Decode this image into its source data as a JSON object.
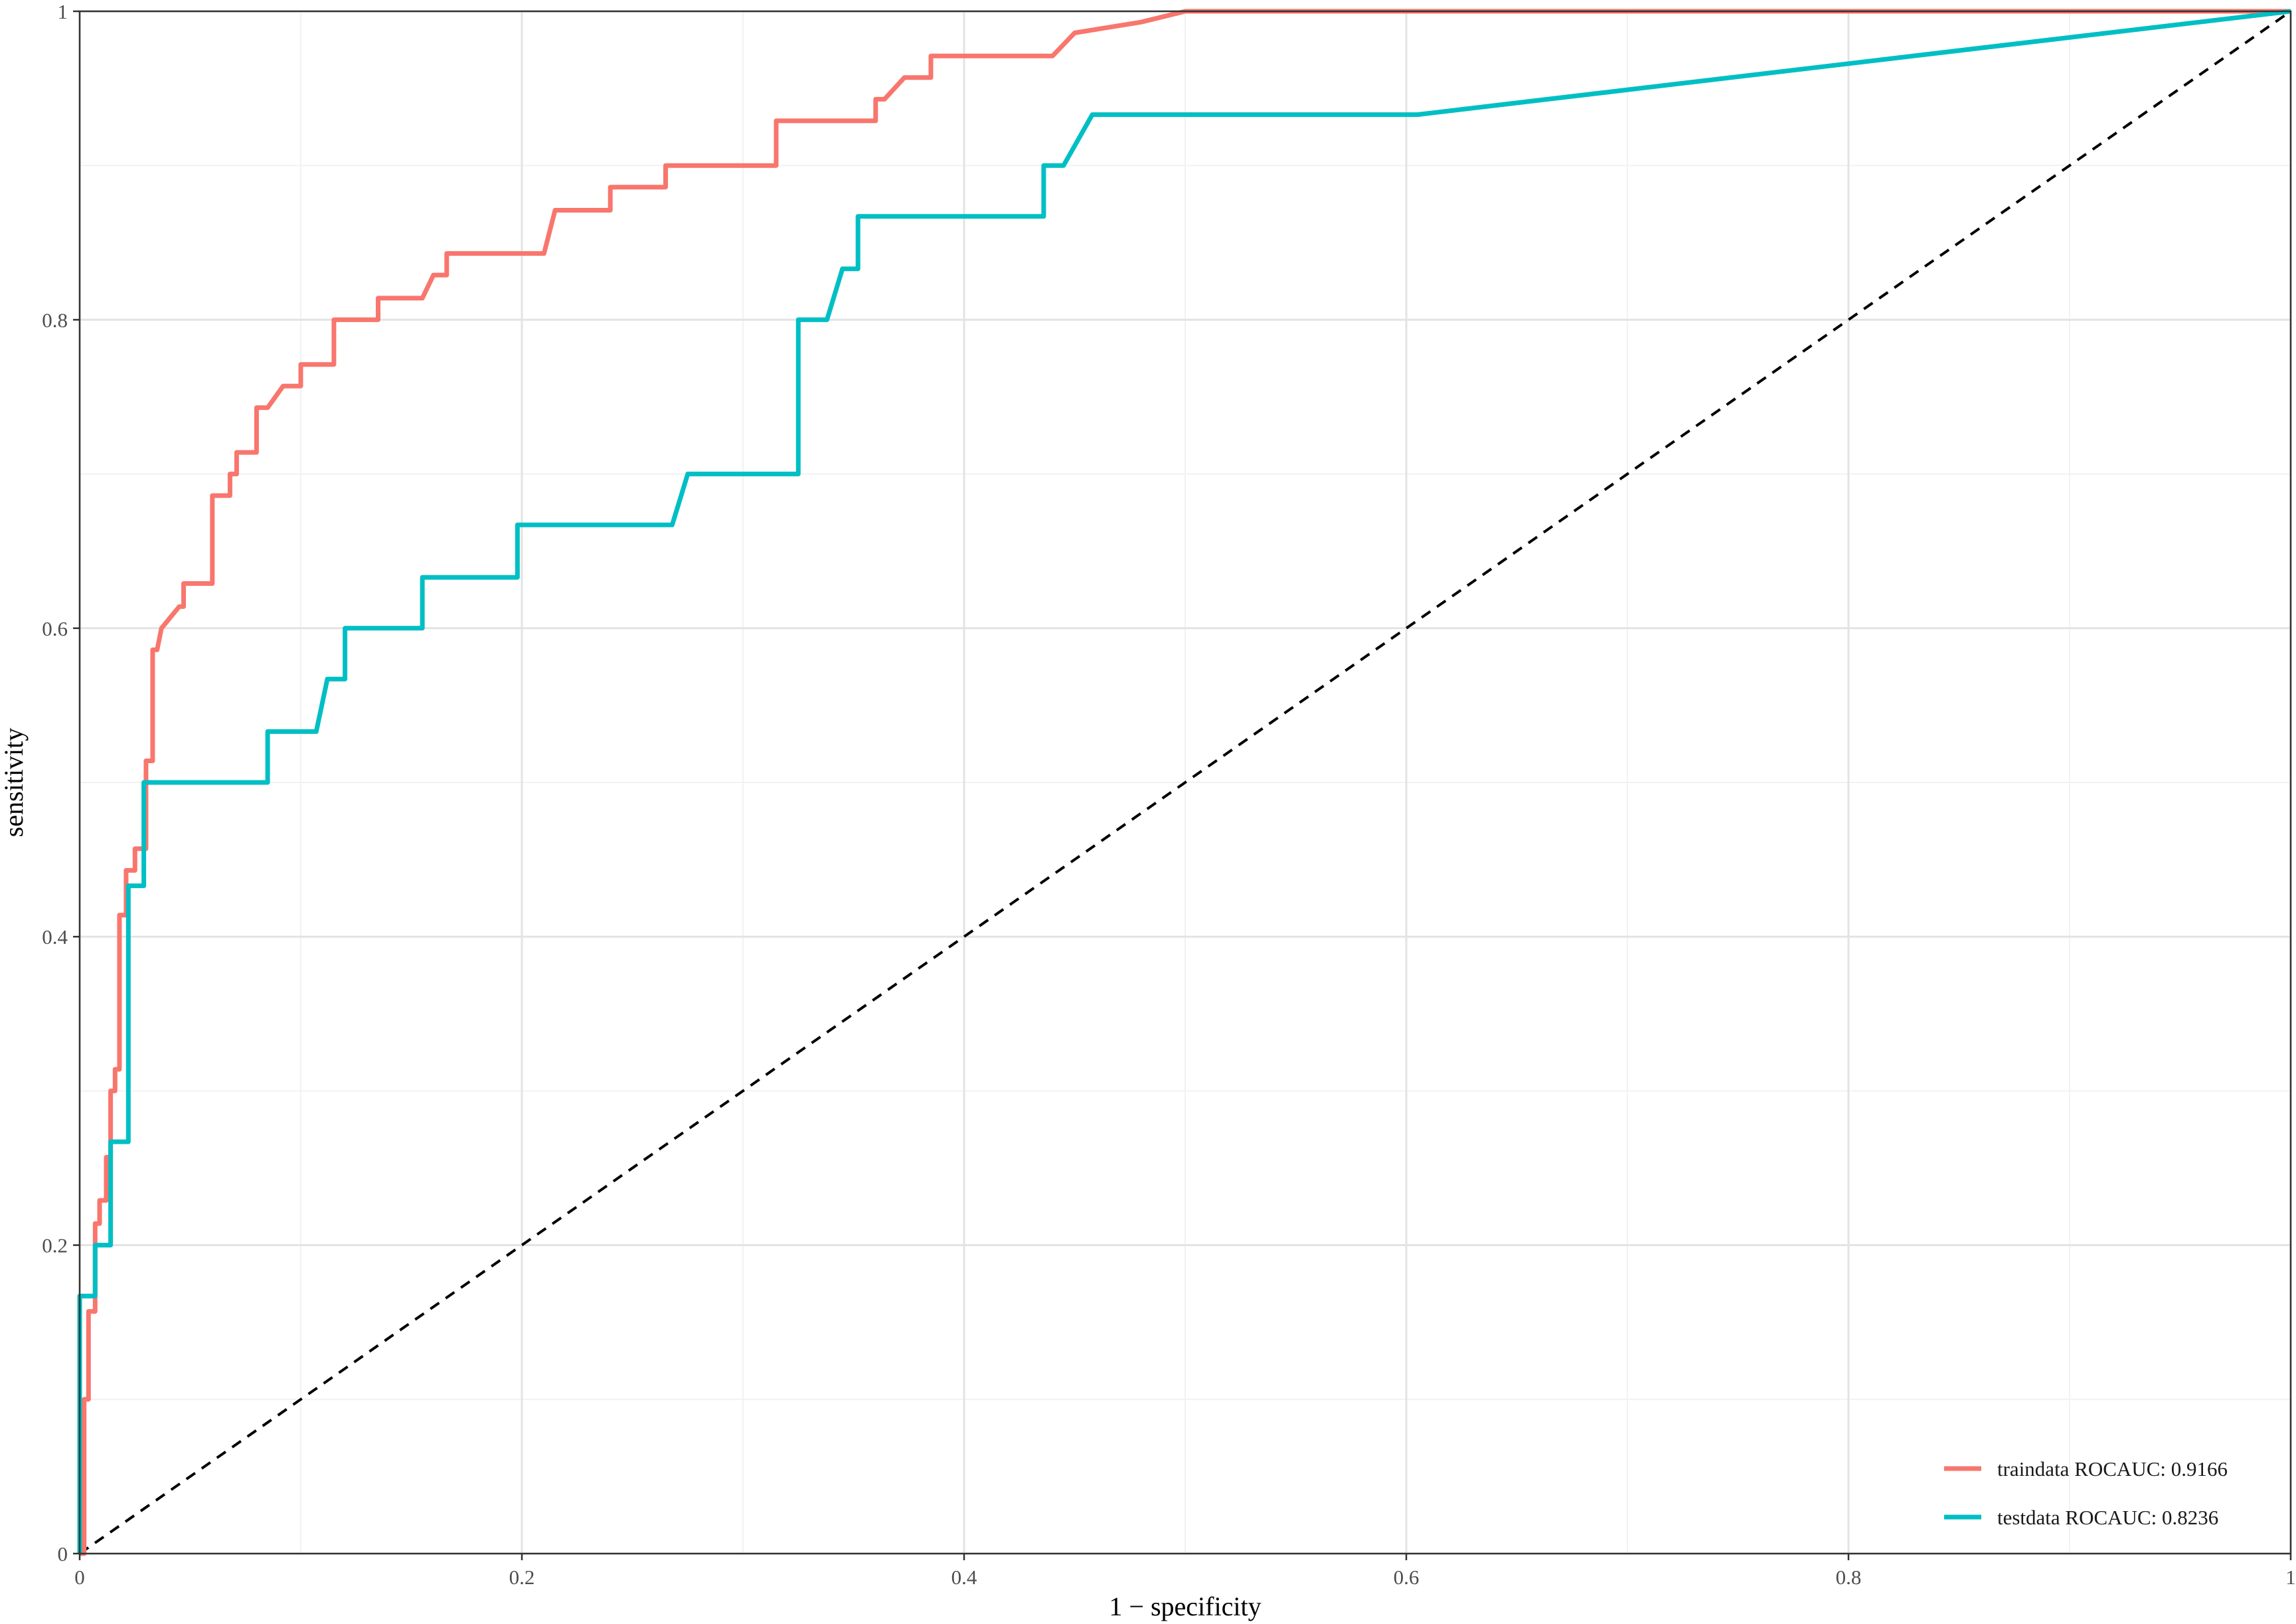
{
  "chart_data": {
    "type": "line",
    "title": "",
    "xlabel": "1 − specificity",
    "ylabel": "sensitivity",
    "xlim": [
      0,
      1
    ],
    "ylim": [
      0,
      1
    ],
    "x_ticks": [
      "0",
      "0.2",
      "0.4",
      "0.6",
      "0.8",
      "1"
    ],
    "y_ticks": [
      "0",
      "0.2",
      "0.4",
      "0.6",
      "0.8",
      "1"
    ],
    "grid": true,
    "legend_position": "bottom-right",
    "reference_line": {
      "style": "dashed",
      "color": "#000000",
      "from": [
        0,
        0
      ],
      "to": [
        1,
        1
      ]
    },
    "series": [
      {
        "name": "traindata",
        "legend_label": "traindata  ROCAUC: 0.9166",
        "color": "#f8766d",
        "x": [
          0,
          0.002,
          0.002,
          0.004,
          0.004,
          0.007,
          0.007,
          0.009,
          0.009,
          0.012,
          0.012,
          0.014,
          0.014,
          0.016,
          0.016,
          0.018,
          0.018,
          0.021,
          0.021,
          0.025,
          0.025,
          0.03,
          0.03,
          0.033,
          0.033,
          0.035,
          0.035,
          0.037,
          0.037,
          0.045,
          0.047,
          0.047,
          0.06,
          0.06,
          0.068,
          0.068,
          0.071,
          0.071,
          0.08,
          0.08,
          0.085,
          0.092,
          0.1,
          0.1,
          0.115,
          0.115,
          0.135,
          0.135,
          0.155,
          0.16,
          0.166,
          0.166,
          0.21,
          0.215,
          0.24,
          0.24,
          0.265,
          0.265,
          0.315,
          0.315,
          0.36,
          0.36,
          0.364,
          0.373,
          0.385,
          0.385,
          0.4,
          0.44,
          0.45,
          0.48,
          0.5,
          1
        ],
        "y": [
          0,
          0,
          0.1,
          0.1,
          0.157,
          0.157,
          0.214,
          0.214,
          0.229,
          0.229,
          0.257,
          0.257,
          0.3,
          0.3,
          0.314,
          0.314,
          0.414,
          0.414,
          0.443,
          0.443,
          0.457,
          0.457,
          0.514,
          0.514,
          0.586,
          0.586,
          0.586,
          0.6,
          0.6,
          0.614,
          0.614,
          0.629,
          0.629,
          0.686,
          0.686,
          0.7,
          0.7,
          0.714,
          0.714,
          0.743,
          0.743,
          0.757,
          0.757,
          0.771,
          0.771,
          0.8,
          0.8,
          0.814,
          0.814,
          0.829,
          0.829,
          0.843,
          0.843,
          0.871,
          0.871,
          0.886,
          0.886,
          0.9,
          0.9,
          0.929,
          0.929,
          0.943,
          0.943,
          0.957,
          0.957,
          0.971,
          0.971,
          0.971,
          0.986,
          0.993,
          1.0,
          1.0
        ]
      },
      {
        "name": "testdata",
        "legend_label": "testdata  ROCAUC: 0.8236",
        "color": "#00bfc4",
        "x": [
          0,
          0,
          0.007,
          0.007,
          0.014,
          0.014,
          0.022,
          0.022,
          0.029,
          0.029,
          0.085,
          0.085,
          0.107,
          0.112,
          0.12,
          0.12,
          0.155,
          0.155,
          0.198,
          0.198,
          0.268,
          0.275,
          0.325,
          0.325,
          0.338,
          0.345,
          0.352,
          0.352,
          0.436,
          0.436,
          0.445,
          0.458,
          0.605,
          1
        ],
        "y": [
          0,
          0.167,
          0.167,
          0.2,
          0.2,
          0.267,
          0.267,
          0.433,
          0.433,
          0.5,
          0.5,
          0.533,
          0.533,
          0.567,
          0.567,
          0.6,
          0.6,
          0.633,
          0.633,
          0.667,
          0.667,
          0.7,
          0.7,
          0.8,
          0.8,
          0.833,
          0.833,
          0.867,
          0.867,
          0.9,
          0.9,
          0.933,
          0.933,
          1.0
        ]
      }
    ]
  }
}
